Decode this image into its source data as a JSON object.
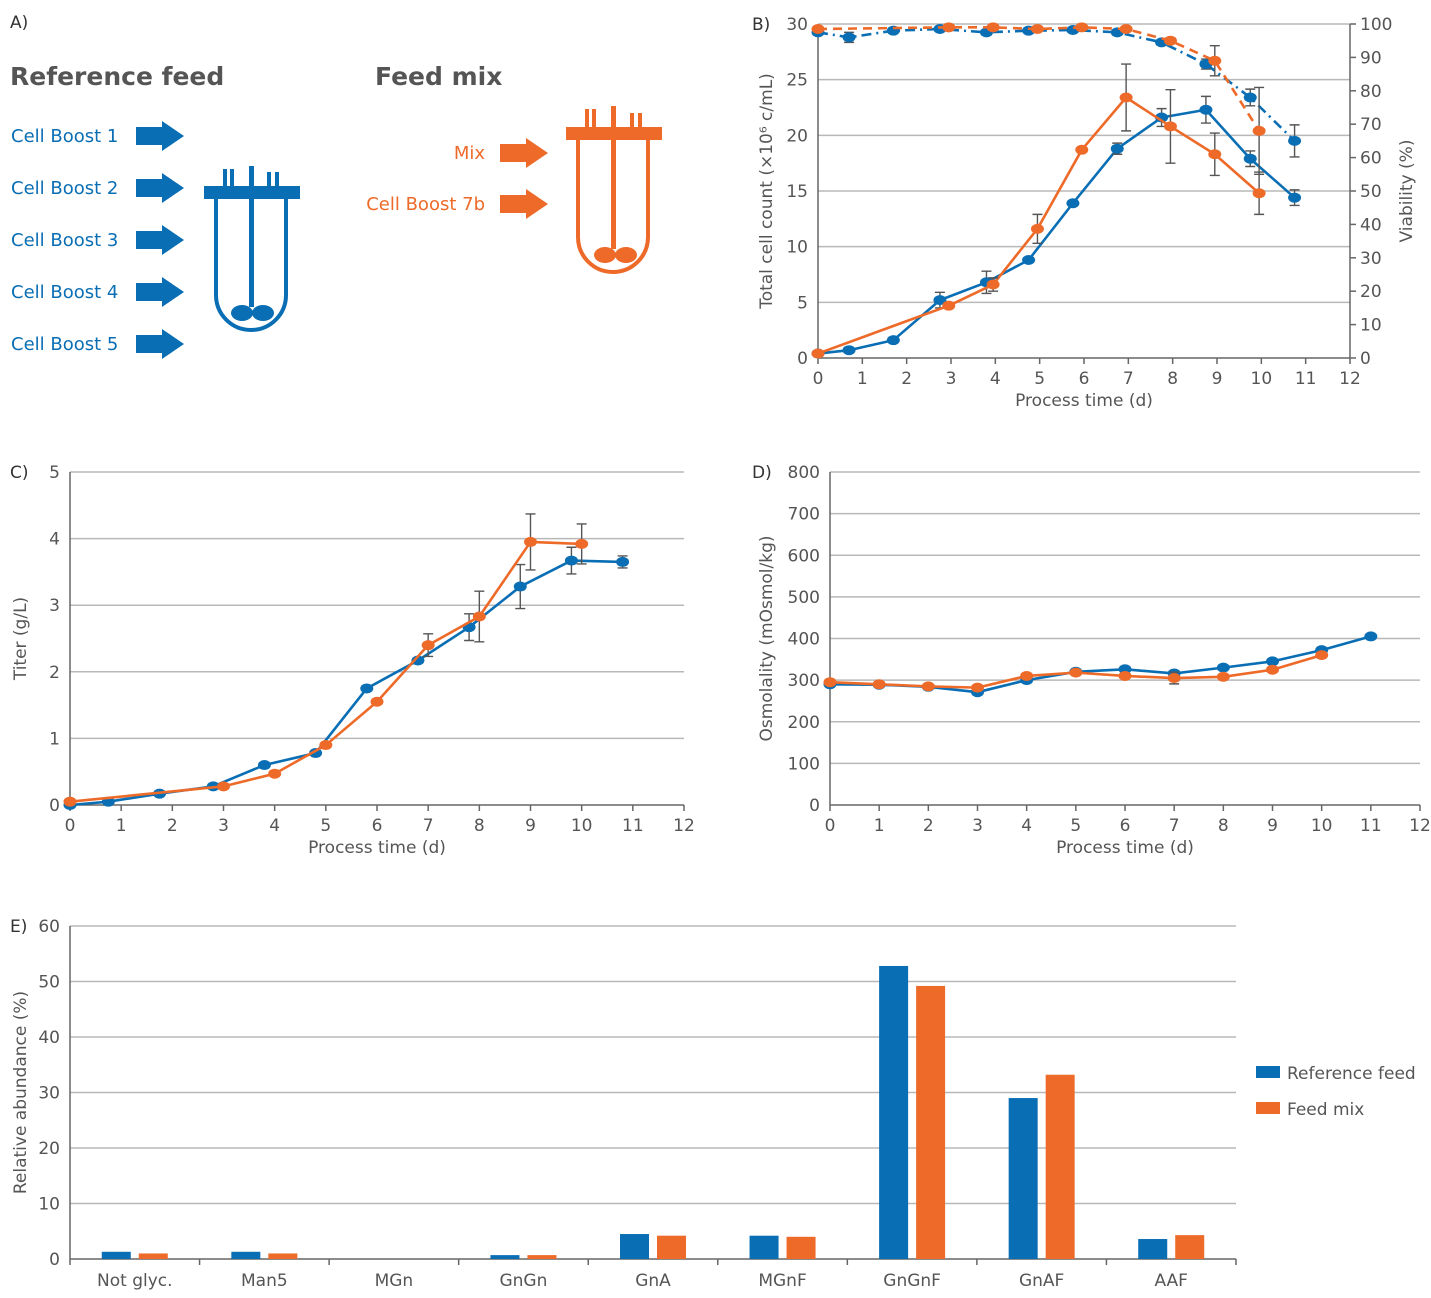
{
  "colors": {
    "reference": "#0a6eb4",
    "feed_mix": "#ee6a29",
    "grid": "#b8b8b8",
    "text": "#555555"
  },
  "panel_a": {
    "label": "A)",
    "reference_feed": {
      "title": "Reference feed",
      "items": [
        "Cell Boost 1",
        "Cell Boost 2",
        "Cell Boost 3",
        "Cell Boost 4",
        "Cell Boost 5"
      ],
      "icon": "bioreactor-icon"
    },
    "feed_mix": {
      "title": "Feed mix",
      "items": [
        "Mix",
        "Cell Boost 7b"
      ],
      "icon": "bioreactor-icon"
    }
  },
  "chart_data": [
    {
      "panel": "B)",
      "type": "line",
      "xlabel": "Process time (d)",
      "ylabel": "Total cell count (×10⁶ c/mL)",
      "ylabel_right": "Viability (%)",
      "xlim": [
        0,
        12
      ],
      "ylim": [
        0,
        30
      ],
      "ylim_right": [
        0,
        100
      ],
      "xticks": [
        "0",
        "1",
        "2",
        "3",
        "4",
        "5",
        "6",
        "7",
        "8",
        "9",
        "10",
        "11",
        "12"
      ],
      "yticks": [
        "0",
        "5",
        "10",
        "15",
        "20",
        "25",
        "30"
      ],
      "yticks_right": [
        "0",
        "10",
        "20",
        "30",
        "40",
        "50",
        "60",
        "70",
        "80",
        "90",
        "100"
      ],
      "grid": true,
      "series": [
        {
          "key": "reference",
          "axis": "left",
          "style": "solid",
          "x": [
            0,
            0.7,
            1.7,
            2.75,
            3.8,
            4.75,
            5.75,
            6.75,
            7.75,
            8.75,
            9.75,
            10.75
          ],
          "y": [
            0.4,
            0.7,
            1.6,
            5.2,
            6.8,
            8.8,
            13.9,
            18.8,
            21.6,
            22.3,
            17.9,
            14.4
          ],
          "err": [
            0,
            0,
            0,
            0.7,
            1.0,
            0,
            0,
            0.5,
            0.8,
            1.2,
            0.7,
            0.7
          ]
        },
        {
          "key": "feed_mix",
          "axis": "left",
          "style": "solid",
          "x": [
            0,
            2.95,
            3.95,
            4.95,
            5.95,
            6.95,
            7.95,
            8.95,
            9.95
          ],
          "y": [
            0.4,
            4.7,
            6.6,
            11.6,
            18.7,
            23.4,
            20.8,
            18.3,
            14.8
          ],
          "err": [
            0,
            0,
            0.6,
            1.3,
            0,
            3.0,
            3.3,
            1.9,
            1.9
          ]
        },
        {
          "key": "reference",
          "axis": "right",
          "style": "dash-dot",
          "x": [
            0,
            0.7,
            1.7,
            2.75,
            3.8,
            4.75,
            5.75,
            6.75,
            7.75,
            8.75,
            9.75,
            10.75
          ],
          "y": [
            97.5,
            96,
            98,
            98.5,
            97.5,
            98,
            98.2,
            97.5,
            94.5,
            88,
            78,
            65
          ],
          "err": [
            0,
            1.5,
            0,
            0,
            0,
            0,
            0,
            0,
            0,
            1.5,
            2.5,
            4.8
          ]
        },
        {
          "key": "feed_mix",
          "axis": "right",
          "style": "dashed",
          "x": [
            0,
            2.95,
            3.95,
            4.95,
            5.95,
            6.95,
            7.95,
            8.95,
            9.95
          ],
          "y": [
            98.5,
            99,
            99,
            98.5,
            99,
            98.5,
            95,
            89,
            68
          ],
          "err": [
            0,
            0,
            0,
            0,
            0,
            0,
            0,
            4.5,
            13
          ]
        }
      ]
    },
    {
      "panel": "C)",
      "type": "line",
      "xlabel": "Process time (d)",
      "ylabel": "Titer (g/L)",
      "xlim": [
        0,
        12
      ],
      "ylim": [
        0,
        5
      ],
      "xticks": [
        "0",
        "1",
        "2",
        "3",
        "4",
        "5",
        "6",
        "7",
        "8",
        "9",
        "10",
        "11",
        "12"
      ],
      "yticks": [
        "0",
        "1",
        "2",
        "3",
        "4",
        "5"
      ],
      "grid": true,
      "series": [
        {
          "key": "reference",
          "x": [
            0,
            0.75,
            1.75,
            2.8,
            3.8,
            4.8,
            5.8,
            6.8,
            7.8,
            8.8,
            9.8,
            10.8
          ],
          "y": [
            0.0,
            0.05,
            0.17,
            0.28,
            0.6,
            0.78,
            1.75,
            2.17,
            2.67,
            3.28,
            3.67,
            3.65
          ],
          "err": [
            0,
            0,
            0,
            0,
            0,
            0,
            0,
            0,
            0.2,
            0.33,
            0.2,
            0.09
          ]
        },
        {
          "key": "feed_mix",
          "x": [
            0,
            3.0,
            4.0,
            5.0,
            6.0,
            7.0,
            8.0,
            9.0,
            10.0
          ],
          "y": [
            0.05,
            0.28,
            0.47,
            0.9,
            1.55,
            2.4,
            2.83,
            3.95,
            3.92
          ],
          "err": [
            0,
            0,
            0,
            0,
            0,
            0.17,
            0.38,
            0.42,
            0.3
          ]
        }
      ]
    },
    {
      "panel": "D)",
      "type": "line",
      "xlabel": "Process time (d)",
      "ylabel": "Osmolality (mOsmol/kg)",
      "xlim": [
        0,
        12
      ],
      "ylim": [
        0,
        800
      ],
      "xticks": [
        "0",
        "1",
        "2",
        "3",
        "4",
        "5",
        "6",
        "7",
        "8",
        "9",
        "10",
        "11",
        "12"
      ],
      "yticks": [
        "0",
        "100",
        "200",
        "300",
        "400",
        "500",
        "600",
        "700",
        "800"
      ],
      "grid": true,
      "series": [
        {
          "key": "reference",
          "x": [
            0,
            1,
            2,
            3,
            4,
            5,
            6,
            7,
            8,
            9,
            10,
            11
          ],
          "y": [
            290,
            289,
            284,
            271,
            300,
            320,
            326,
            316,
            330,
            345,
            372,
            405
          ],
          "err": [
            0,
            0,
            0,
            0,
            0,
            0,
            0,
            0,
            0,
            0,
            0,
            0
          ]
        },
        {
          "key": "feed_mix",
          "x": [
            0,
            1,
            2,
            3,
            4,
            5,
            6,
            7,
            8,
            9,
            10
          ],
          "y": [
            295,
            290,
            285,
            282,
            310,
            318,
            310,
            305,
            308,
            325,
            360
          ],
          "err": [
            0,
            0,
            0,
            0,
            0,
            0,
            0,
            14,
            0,
            0,
            0
          ]
        }
      ]
    },
    {
      "panel": "E)",
      "type": "bar",
      "ylabel": "Relative abundance (%)",
      "ylim": [
        0,
        60
      ],
      "yticks": [
        "0",
        "10",
        "20",
        "30",
        "40",
        "50",
        "60"
      ],
      "grid": true,
      "legend_position": "right",
      "categories": [
        "Not glyc.",
        "Man5",
        "MGn",
        "GnGn",
        "GnA",
        "MGnF",
        "GnGnF",
        "GnAF",
        "AAF"
      ],
      "series": [
        {
          "name": "Reference feed",
          "key": "reference",
          "values": [
            1.3,
            1.3,
            0.0,
            0.7,
            4.5,
            4.2,
            52.8,
            29.0,
            3.6
          ]
        },
        {
          "name": "Feed mix",
          "key": "feed_mix",
          "values": [
            1.0,
            1.0,
            0.0,
            0.7,
            4.2,
            4.0,
            49.2,
            33.2,
            4.3
          ]
        }
      ]
    }
  ]
}
